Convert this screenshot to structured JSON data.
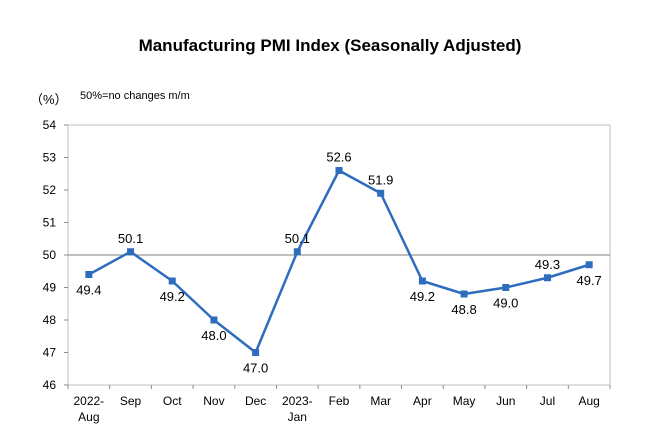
{
  "chart_data": {
    "type": "line",
    "title": "Manufacturing PMI Index (Seasonally Adjusted)",
    "unit_label": "（%）",
    "annotation": "50%=no changes m/m",
    "categories": [
      [
        "2022-",
        "Aug"
      ],
      [
        "Sep"
      ],
      [
        "Oct"
      ],
      [
        "Nov"
      ],
      [
        "Dec"
      ],
      [
        "2023-",
        "Jan"
      ],
      [
        "Feb"
      ],
      [
        "Mar"
      ],
      [
        "Apr"
      ],
      [
        "May"
      ],
      [
        "Jun"
      ],
      [
        "Jul"
      ],
      [
        "Aug"
      ]
    ],
    "series": [
      {
        "values": [
          49.4,
          50.1,
          49.2,
          48.0,
          47.0,
          50.1,
          52.6,
          51.9,
          49.2,
          48.8,
          49.0,
          49.3,
          49.7
        ]
      }
    ],
    "data_labels": [
      "49.4",
      "50.1",
      "49.2",
      "48.0",
      "47.0",
      "50.1",
      "52.6",
      "51.9",
      "49.2",
      "48.8",
      "49.0",
      "49.3",
      "49.7"
    ],
    "label_position": [
      "below",
      "above",
      "below",
      "below",
      "below",
      "above",
      "above",
      "above",
      "below",
      "below",
      "below",
      "above",
      "below"
    ],
    "ylim": [
      46,
      54
    ],
    "yticks": [
      46,
      47,
      48,
      49,
      50,
      51,
      52,
      53,
      54
    ],
    "reference_line": 50,
    "grid": false,
    "line_color": "#2e6dbe",
    "marker_color": "#2e6dbe",
    "reference_line_color": "#7f7f7f"
  }
}
